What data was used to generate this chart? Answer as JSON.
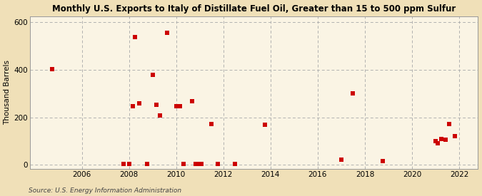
{
  "title": "Monthly U.S. Exports to Italy of Distillate Fuel Oil, Greater than 15 to 500 ppm Sulfur",
  "ylabel": "Thousand Barrels",
  "source": "Source: U.S. Energy Information Administration",
  "background_color": "#f0e0b8",
  "plot_background_color": "#faf4e4",
  "marker_color": "#cc0000",
  "marker_size": 18,
  "xlim": [
    2003.8,
    2022.8
  ],
  "ylim": [
    -18,
    625
  ],
  "yticks": [
    0,
    200,
    400,
    600
  ],
  "xticks": [
    2006,
    2008,
    2010,
    2012,
    2014,
    2016,
    2018,
    2020,
    2022
  ],
  "data_points": [
    [
      2004.75,
      402
    ],
    [
      2007.75,
      4
    ],
    [
      2008.0,
      5
    ],
    [
      2008.15,
      248
    ],
    [
      2008.25,
      537
    ],
    [
      2008.42,
      258
    ],
    [
      2008.75,
      4
    ],
    [
      2009.0,
      378
    ],
    [
      2009.15,
      252
    ],
    [
      2009.3,
      208
    ],
    [
      2009.6,
      554
    ],
    [
      2010.0,
      248
    ],
    [
      2010.15,
      248
    ],
    [
      2010.3,
      4
    ],
    [
      2010.67,
      268
    ],
    [
      2010.83,
      5
    ],
    [
      2011.0,
      5
    ],
    [
      2011.08,
      5
    ],
    [
      2011.5,
      172
    ],
    [
      2011.75,
      4
    ],
    [
      2012.5,
      4
    ],
    [
      2013.75,
      168
    ],
    [
      2017.0,
      22
    ],
    [
      2017.5,
      300
    ],
    [
      2018.75,
      15
    ],
    [
      2021.0,
      100
    ],
    [
      2021.1,
      92
    ],
    [
      2021.25,
      110
    ],
    [
      2021.42,
      105
    ],
    [
      2021.58,
      172
    ],
    [
      2021.83,
      122
    ]
  ]
}
